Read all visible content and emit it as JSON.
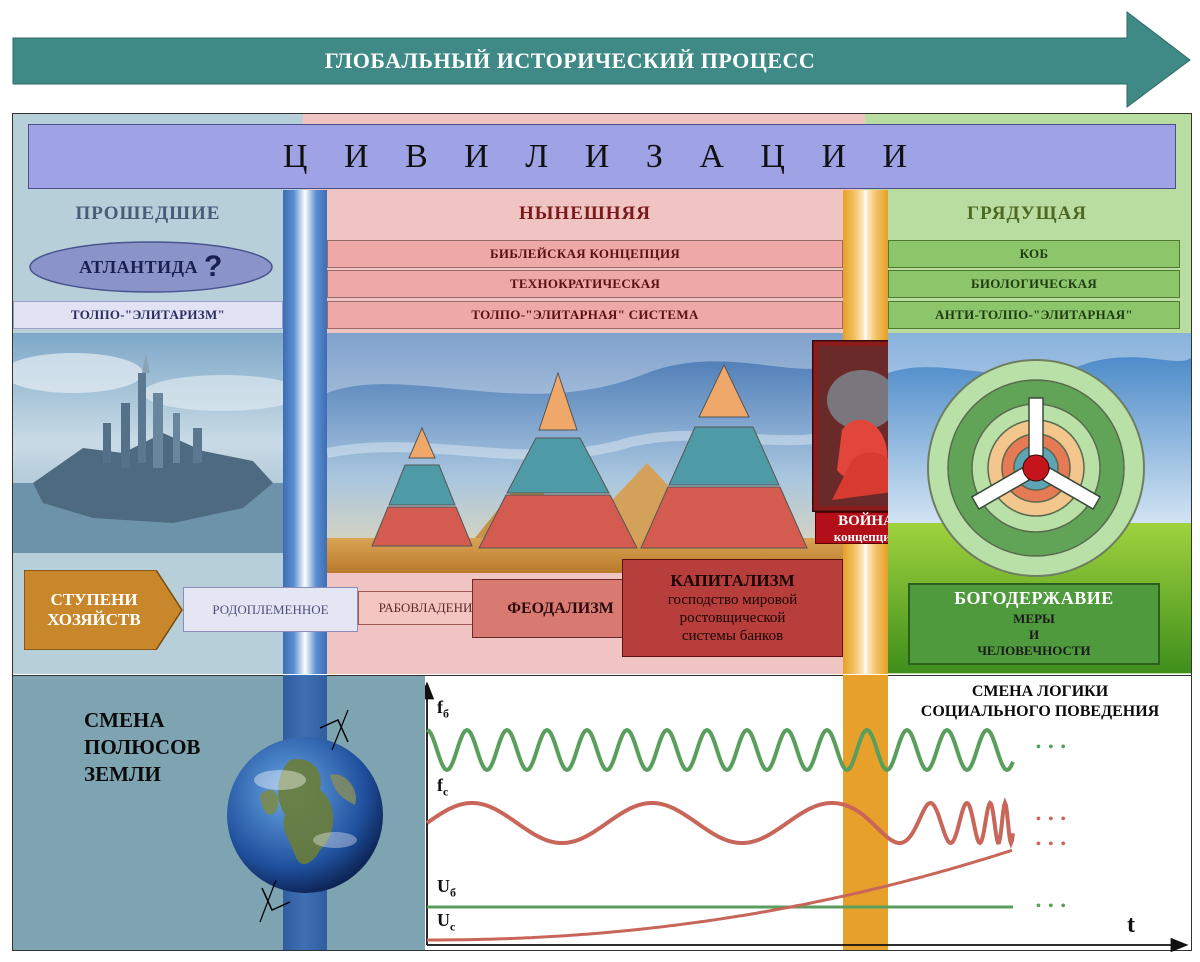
{
  "header": {
    "title": "ГЛОБАЛЬНЫЙ ИСТОРИЧЕСКИЙ ПРОЦЕСС"
  },
  "civilizations": {
    "title": "Ц И В И Л И З А Ц И И"
  },
  "past": {
    "title": "ПРОШЕДШИЕ",
    "atlantis": "АТЛАНТИДА",
    "question": "?",
    "system": "ТОЛПО-\"ЭЛИТАРИЗМ\""
  },
  "present": {
    "title": "НЫНЕШНЯЯ",
    "rows": [
      "БИБЛЕЙСКАЯ КОНЦЕПЦИЯ",
      "ТЕХНОКРАТИЧЕСКАЯ",
      "ТОЛПО-\"ЭЛИТАРНАЯ\" СИСТЕМА"
    ]
  },
  "future": {
    "title": "ГРЯДУЩАЯ",
    "rows": [
      "КОБ",
      "БИОЛОГИЧЕСКАЯ",
      "АНТИ-ТОЛПО-\"ЭЛИТАРНАЯ\""
    ]
  },
  "war": {
    "line1": "ВОЙНА",
    "line2": "концепций"
  },
  "economy": {
    "label_line1": "СТУПЕНИ",
    "label_line2": "ХОЗЯЙСТВ",
    "tribal": "РОДОПЛЕМЕННОЕ",
    "slavery": "РАБОВЛАДЕНИЕ",
    "feudalism": "ФЕОДАЛИЗМ",
    "capitalism_title": "КАПИТАЛИЗМ",
    "capitalism_line1": "господство мировой",
    "capitalism_line2": "ростовщической",
    "capitalism_line3": "системы банков"
  },
  "theocracy": {
    "title": "БОГОДЕРЖАВИЕ",
    "line1": "МЕРЫ",
    "line2": "И",
    "line3": "ЧЕЛОВЕЧНОСТИ"
  },
  "poles": {
    "line1": "СМЕНА",
    "line2": "ПОЛЮСОВ",
    "line3": "ЗЕМЛИ"
  },
  "logic": {
    "line1": "СМЕНА ЛОГИКИ",
    "line2": "СОЦИАЛЬНОГО ПОВЕДЕНИЯ"
  },
  "graph": {
    "fb_main": "f",
    "fb_sub": "б",
    "fc_main": "f",
    "fc_sub": "с",
    "ub_main": "U",
    "ub_sub": "б",
    "uc_main": "U",
    "uc_sub": "с",
    "t": "t",
    "dots": "• • •"
  },
  "colors": {
    "header_arrow": "#3f8a86",
    "civ_band": "#9fa3e6",
    "past_bg": "#b7cfd8",
    "present_bg": "#f1c4c4",
    "future_bg": "#b9dca0",
    "bio_green": "#5a9e5e",
    "social_red": "#c8665a",
    "war_orange": "#e7a029"
  }
}
